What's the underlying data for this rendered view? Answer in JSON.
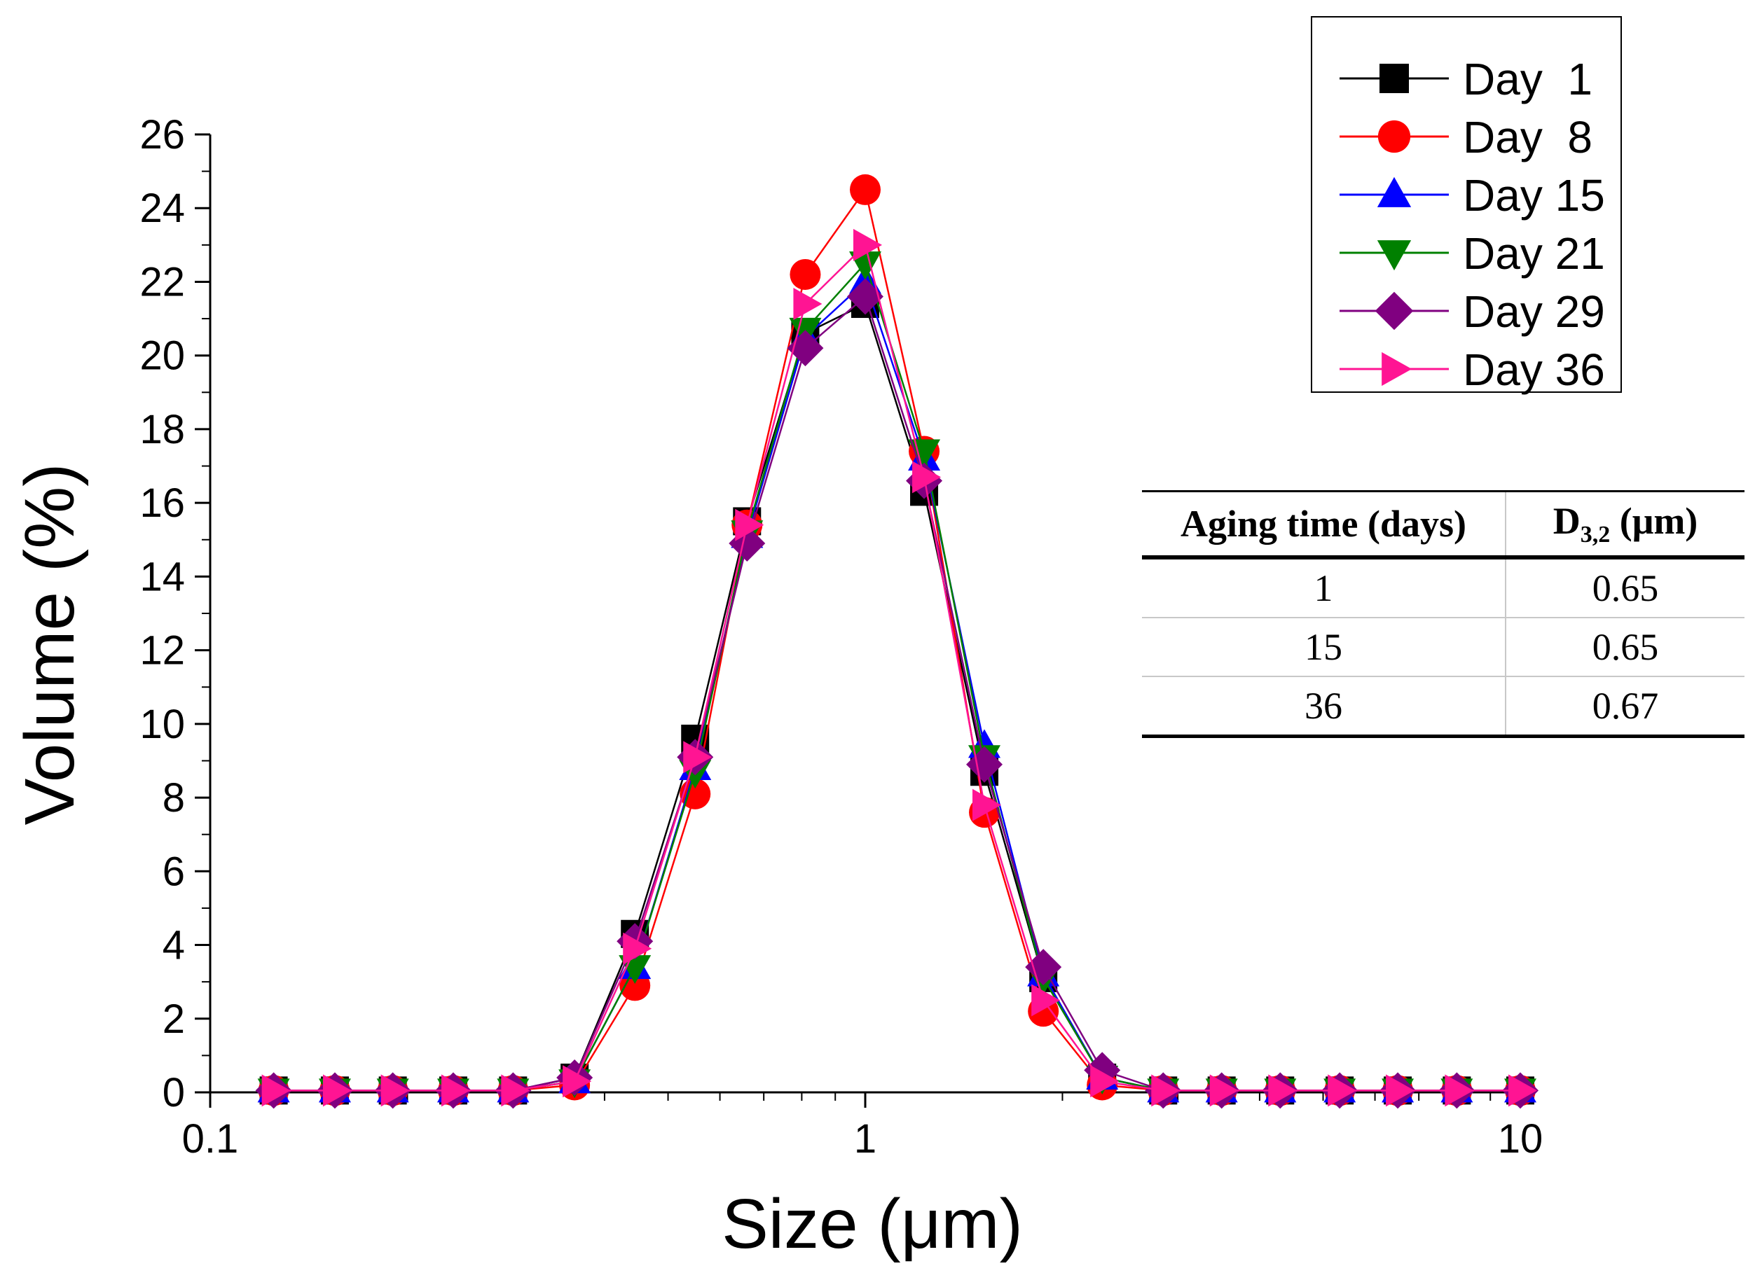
{
  "chart_data": {
    "type": "line",
    "xscale": "log",
    "xlabel": "Size (μm)",
    "ylabel": "Volume (%)",
    "xlim": [
      0.1,
      10
    ],
    "ylim": [
      0,
      26
    ],
    "x_ticks": [
      0.1,
      1,
      10
    ],
    "x_tick_labels": [
      "0.1",
      "1",
      "10"
    ],
    "y_ticks": [
      0,
      2,
      4,
      6,
      8,
      10,
      12,
      14,
      16,
      18,
      20,
      22,
      24,
      26
    ],
    "y_tick_labels": [
      "0",
      "2",
      "4",
      "6",
      "8",
      "10",
      "12",
      "14",
      "16",
      "18",
      "20",
      "22",
      "24",
      "26"
    ],
    "legend_position": "top-right",
    "x": [
      0.125,
      0.155,
      0.19,
      0.235,
      0.29,
      0.36,
      0.445,
      0.55,
      0.66,
      0.81,
      1.0,
      1.23,
      1.52,
      1.87,
      2.3,
      2.85,
      3.5,
      4.3,
      5.3,
      6.5,
      8.0,
      10.0
    ],
    "series": [
      {
        "name": "Day  1",
        "color": "#000000",
        "marker": "square",
        "values": [
          0.05,
          0.05,
          0.05,
          0.05,
          0.05,
          0.4,
          4.3,
          9.6,
          15.5,
          20.6,
          21.4,
          16.3,
          8.7,
          3.1,
          0.4,
          0.05,
          0.05,
          0.05,
          0.05,
          0.05,
          0.05,
          0.05
        ]
      },
      {
        "name": "Day  8",
        "color": "#ff0000",
        "marker": "circle",
        "values": [
          0.05,
          0.05,
          0.05,
          0.05,
          0.05,
          0.2,
          2.9,
          8.1,
          15.4,
          22.2,
          24.5,
          17.4,
          7.6,
          2.2,
          0.2,
          0.05,
          0.05,
          0.05,
          0.05,
          0.05,
          0.05,
          0.05
        ]
      },
      {
        "name": "Day 15",
        "color": "#0000ff",
        "marker": "triangle-up",
        "values": [
          0.05,
          0.05,
          0.05,
          0.05,
          0.05,
          0.3,
          3.4,
          8.8,
          15.1,
          20.5,
          22.0,
          17.2,
          9.4,
          3.2,
          0.4,
          0.05,
          0.05,
          0.05,
          0.05,
          0.05,
          0.05,
          0.05
        ]
      },
      {
        "name": "Day 21",
        "color": "#008000",
        "marker": "triangle-down",
        "values": [
          0.05,
          0.05,
          0.05,
          0.05,
          0.05,
          0.3,
          3.4,
          8.7,
          15.2,
          20.7,
          22.5,
          17.4,
          9.1,
          3.1,
          0.4,
          0.05,
          0.05,
          0.05,
          0.05,
          0.05,
          0.05,
          0.05
        ]
      },
      {
        "name": "Day 29",
        "color": "#800080",
        "marker": "diamond",
        "values": [
          0.05,
          0.05,
          0.05,
          0.05,
          0.05,
          0.4,
          4.1,
          9.1,
          14.9,
          20.2,
          21.6,
          16.6,
          8.9,
          3.4,
          0.6,
          0.05,
          0.05,
          0.05,
          0.05,
          0.05,
          0.05,
          0.05
        ]
      },
      {
        "name": "Day 36",
        "color": "#ff1493",
        "marker": "triangle-right",
        "values": [
          0.05,
          0.05,
          0.05,
          0.05,
          0.05,
          0.3,
          3.9,
          9.1,
          15.4,
          21.4,
          23.0,
          16.7,
          7.8,
          2.5,
          0.3,
          0.05,
          0.05,
          0.05,
          0.05,
          0.05,
          0.05,
          0.05
        ]
      }
    ]
  },
  "table": {
    "header_aging": "Aging time (days)",
    "header_d_base": "D",
    "header_d_sub": "3,2",
    "header_d_unit": " (μm)",
    "rows": [
      {
        "aging": "1",
        "d32": "0.65"
      },
      {
        "aging": "15",
        "d32": "0.65"
      },
      {
        "aging": "36",
        "d32": "0.67"
      }
    ]
  }
}
